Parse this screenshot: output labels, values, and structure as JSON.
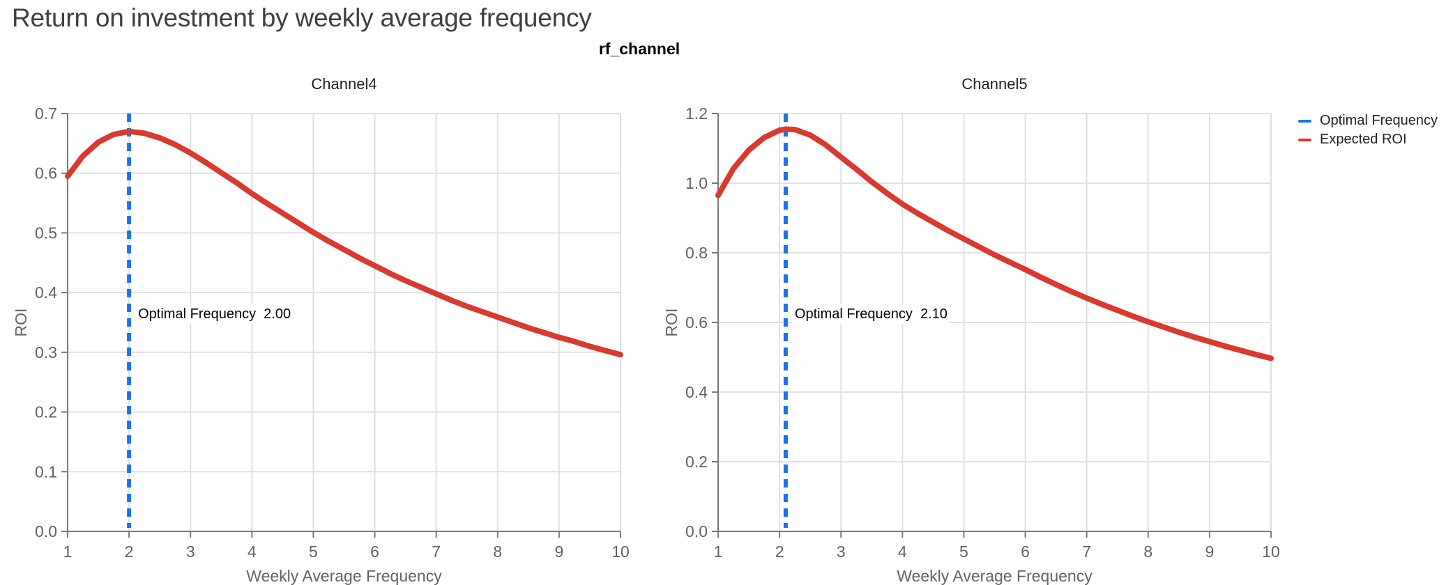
{
  "header": {
    "title": "Return on investment by weekly average frequency",
    "subtitle": "rf_channel"
  },
  "legend": {
    "items": [
      {
        "label": "Optimal Frequency",
        "color": "#1A73E8"
      },
      {
        "label": "Expected ROI",
        "color": "#D9392E"
      }
    ]
  },
  "palette": {
    "expected_roi_red": "#D9392E",
    "optimal_frequency_blue": "#1A73E8",
    "gridline": "#E0E0E0",
    "axis_spine": "#75787B",
    "tick_label": "#616161",
    "axis_title": "#5F6368",
    "facet_title": "#212121",
    "page_title": "#3C4043"
  },
  "chart_data": [
    {
      "type": "line",
      "title": "Channel4",
      "xlabel": "Weekly Average Frequency",
      "ylabel": "ROI",
      "xlim": [
        1,
        10
      ],
      "ylim": [
        0.0,
        0.7
      ],
      "xticks": [
        1,
        2,
        3,
        4,
        5,
        6,
        7,
        8,
        9,
        10
      ],
      "yticks": [
        0.0,
        0.1,
        0.2,
        0.3,
        0.4,
        0.5,
        0.6,
        0.7
      ],
      "ytick_decimals": 1,
      "grid": true,
      "vline": {
        "name": "Optimal Frequency",
        "x": 2.0,
        "annotation": "Optimal Frequency  2.00"
      },
      "series": [
        {
          "name": "Expected ROI",
          "x": [
            1,
            1.25,
            1.5,
            1.75,
            2,
            2.25,
            2.5,
            2.75,
            3,
            3.25,
            3.5,
            3.75,
            4,
            4.25,
            4.5,
            4.75,
            5,
            5.25,
            5.5,
            5.75,
            6,
            6.25,
            6.5,
            6.75,
            7,
            7.25,
            7.5,
            7.75,
            8,
            8.25,
            8.5,
            8.75,
            9,
            9.25,
            9.5,
            9.75,
            10
          ],
          "y": [
            0.595,
            0.629,
            0.652,
            0.665,
            0.67,
            0.667,
            0.659,
            0.648,
            0.634,
            0.618,
            0.601,
            0.584,
            0.566,
            0.549,
            0.533,
            0.517,
            0.501,
            0.486,
            0.472,
            0.458,
            0.445,
            0.432,
            0.42,
            0.409,
            0.398,
            0.387,
            0.377,
            0.368,
            0.359,
            0.35,
            0.341,
            0.333,
            0.325,
            0.318,
            0.31,
            0.303,
            0.296
          ]
        }
      ]
    },
    {
      "type": "line",
      "title": "Channel5",
      "xlabel": "Weekly Average Frequency",
      "ylabel": "ROI",
      "xlim": [
        1,
        10
      ],
      "ylim": [
        0.0,
        1.2
      ],
      "xticks": [
        1,
        2,
        3,
        4,
        5,
        6,
        7,
        8,
        9,
        10
      ],
      "yticks": [
        0.0,
        0.2,
        0.4,
        0.6,
        0.8,
        1.0,
        1.2
      ],
      "ytick_decimals": 1,
      "grid": true,
      "vline": {
        "name": "Optimal Frequency",
        "x": 2.1,
        "annotation": "Optimal Frequency  2.10"
      },
      "series": [
        {
          "name": "Expected ROI",
          "x": [
            1,
            1.25,
            1.5,
            1.75,
            2,
            2.1,
            2.25,
            2.5,
            2.75,
            3,
            3.25,
            3.5,
            3.75,
            4,
            4.25,
            4.5,
            4.75,
            5,
            5.25,
            5.5,
            5.75,
            6,
            6.25,
            6.5,
            6.75,
            7,
            7.25,
            7.5,
            7.75,
            8,
            8.25,
            8.5,
            8.75,
            9,
            9.25,
            9.5,
            9.75,
            10
          ],
          "y": [
            0.965,
            1.042,
            1.095,
            1.131,
            1.152,
            1.155,
            1.154,
            1.138,
            1.11,
            1.075,
            1.04,
            1.004,
            0.971,
            0.94,
            0.913,
            0.888,
            0.863,
            0.84,
            0.817,
            0.794,
            0.773,
            0.752,
            0.73,
            0.709,
            0.689,
            0.67,
            0.652,
            0.635,
            0.618,
            0.602,
            0.587,
            0.572,
            0.558,
            0.545,
            0.532,
            0.52,
            0.508,
            0.497
          ]
        }
      ]
    }
  ]
}
